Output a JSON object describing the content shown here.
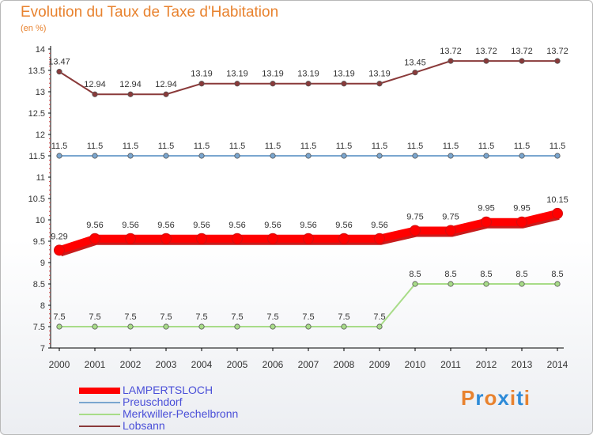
{
  "title": "Evolution du Taux de Taxe d'Habitation",
  "subtitle": "(en %)",
  "logo": {
    "letters": [
      "P",
      "r",
      "o",
      "x",
      "i",
      "t",
      "i"
    ],
    "colors": [
      "#e8822e",
      "#2e8bd8",
      "#e8822e",
      "#2e8bd8",
      "#e8822e",
      "#2e8bd8",
      "#e8822e"
    ]
  },
  "chart_data": {
    "type": "line",
    "x": [
      "2000",
      "2001",
      "2002",
      "2003",
      "2004",
      "2005",
      "2006",
      "2007",
      "2008",
      "2009",
      "2010",
      "2011",
      "2012",
      "2013",
      "2014"
    ],
    "ylim": [
      7,
      14
    ],
    "yticks": [
      "7",
      "7.5",
      "8",
      "8.5",
      "9",
      "9.5",
      "10",
      "10.5",
      "11",
      "11.5",
      "12",
      "12.5",
      "13",
      "13.5",
      "14"
    ],
    "grid": false,
    "legend_position": "bottom-left",
    "series": [
      {
        "name": "LAMPERTSLOCH",
        "color": "#ff0000",
        "values": [
          9.29,
          9.56,
          9.56,
          9.56,
          9.56,
          9.56,
          9.56,
          9.56,
          9.56,
          9.56,
          9.75,
          9.75,
          9.95,
          9.95,
          10.15
        ],
        "labels": [
          "9.29",
          "9.56",
          "9.56",
          "9.56",
          "9.56",
          "9.56",
          "9.56",
          "9.56",
          "9.56",
          "9.56",
          "9.75",
          "9.75",
          "9.95",
          "9.95",
          "10.15"
        ]
      },
      {
        "name": "Preuschdorf",
        "color": "#7aa6cf",
        "values": [
          11.5,
          11.5,
          11.5,
          11.5,
          11.5,
          11.5,
          11.5,
          11.5,
          11.5,
          11.5,
          11.5,
          11.5,
          11.5,
          11.5,
          11.5
        ],
        "labels": [
          "11.5",
          "11.5",
          "11.5",
          "11.5",
          "11.5",
          "11.5",
          "11.5",
          "11.5",
          "11.5",
          "11.5",
          "11.5",
          "11.5",
          "11.5",
          "11.5",
          "11.5"
        ]
      },
      {
        "name": "Merkwiller-Pechelbronn",
        "color": "#a8dc88",
        "values": [
          7.5,
          7.5,
          7.5,
          7.5,
          7.5,
          7.5,
          7.5,
          7.5,
          7.5,
          7.5,
          8.5,
          8.5,
          8.5,
          8.5,
          8.5
        ],
        "labels": [
          "7.5",
          "7.5",
          "7.5",
          "7.5",
          "7.5",
          "7.5",
          "7.5",
          "7.5",
          "7.5",
          "7.5",
          "8.5",
          "8.5",
          "8.5",
          "8.5",
          "8.5"
        ]
      },
      {
        "name": "Lobsann",
        "color": "#8a3a3a",
        "values": [
          13.47,
          12.94,
          12.94,
          12.94,
          13.19,
          13.19,
          13.19,
          13.19,
          13.19,
          13.19,
          13.45,
          13.72,
          13.72,
          13.72,
          13.72
        ],
        "labels": [
          "13.47",
          "12.94",
          "12.94",
          "12.94",
          "13.19",
          "13.19",
          "13.19",
          "13.19",
          "13.19",
          "13.19",
          "13.45",
          "13.72",
          "13.72",
          "13.72",
          "13.72"
        ]
      }
    ]
  }
}
